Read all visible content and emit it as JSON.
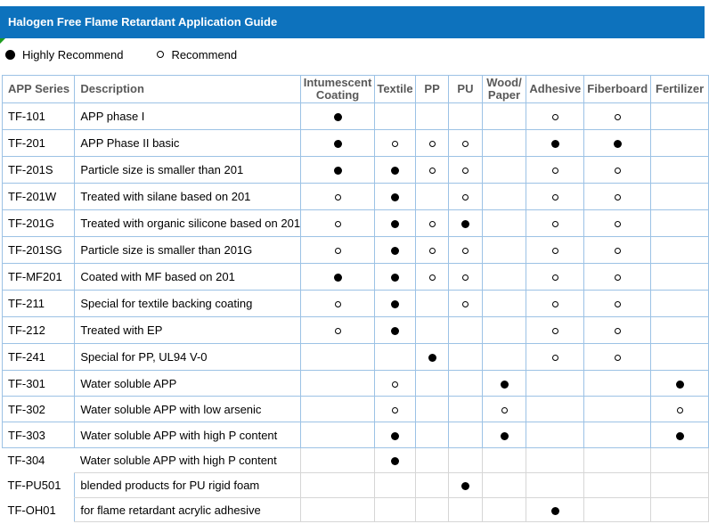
{
  "title": "Halogen Free Flame Retardant Application Guide",
  "legend": {
    "highly_label": "Highly Recommend",
    "recommend_label": "Recommend",
    "highly_marker": "filled-circle",
    "recommend_marker": "open-circle"
  },
  "colors": {
    "title_bar_blue": "#0d72bd",
    "grid_blue": "#9cc2e5",
    "grid_gray": "#d6d6d6",
    "header_text_gray": "#595959",
    "marker_black": "#000000",
    "corner_marker_green": "#1e9c1e"
  },
  "table": {
    "headers": [
      "APP Series",
      "Description",
      "Intumescent\nCoating",
      "Textile",
      "PP",
      "PU",
      "Wood/\nPaper",
      "Adhesive",
      "Fiberboard",
      "Fertilizer"
    ],
    "marker_key": {
      "H": "highly-recommend",
      "R": "recommend",
      "": "none"
    },
    "rows": [
      {
        "series": "TF-101",
        "desc": "APP phase I",
        "cells": [
          "H",
          "",
          "",
          "",
          "",
          "R",
          "R",
          ""
        ]
      },
      {
        "series": "TF-201",
        "desc": "APP Phase II basic",
        "cells": [
          "H",
          "R",
          "R",
          "R",
          "",
          "H",
          "H",
          ""
        ]
      },
      {
        "series": "TF-201S",
        "desc": "Particle size is smaller than 201",
        "cells": [
          "H",
          "H",
          "R",
          "R",
          "",
          "R",
          "R",
          ""
        ]
      },
      {
        "series": "TF-201W",
        "desc": "Treated with silane based on 201",
        "cells": [
          "R",
          "H",
          "",
          "R",
          "",
          "R",
          "R",
          ""
        ]
      },
      {
        "series": "TF-201G",
        "desc": "Treated with organic silicone based on 201",
        "cells": [
          "R",
          "H",
          "R",
          "H",
          "",
          "R",
          "R",
          ""
        ]
      },
      {
        "series": "TF-201SG",
        "desc": "Particle size is smaller than 201G",
        "cells": [
          "R",
          "H",
          "R",
          "R",
          "",
          "R",
          "R",
          ""
        ]
      },
      {
        "series": "TF-MF201",
        "desc": "Coated with MF based on 201",
        "cells": [
          "H",
          "H",
          "R",
          "R",
          "",
          "R",
          "R",
          ""
        ]
      },
      {
        "series": "TF-211",
        "desc": "Special for textile backing coating",
        "cells": [
          "R",
          "H",
          "",
          "R",
          "",
          "R",
          "R",
          ""
        ]
      },
      {
        "series": "TF-212",
        "desc": "Treated with EP",
        "cells": [
          "R",
          "H",
          "",
          "",
          "",
          "R",
          "R",
          ""
        ]
      },
      {
        "series": "TF-241",
        "desc": "Special for PP, UL94 V-0",
        "cells": [
          "",
          "",
          "H",
          "",
          "",
          "R",
          "R",
          ""
        ]
      },
      {
        "series": "TF-301",
        "desc": "Water soluble APP",
        "cells": [
          "",
          "R",
          "",
          "",
          "H",
          "",
          "",
          "H"
        ]
      },
      {
        "series": "TF-302",
        "desc": "Water soluble APP with low arsenic",
        "cells": [
          "",
          "R",
          "",
          "",
          "R",
          "",
          "",
          "R"
        ]
      },
      {
        "series": "TF-303",
        "desc": "Water soluble APP with high P content",
        "cells": [
          "",
          "H",
          "",
          "",
          "H",
          "",
          "",
          "H"
        ]
      },
      {
        "series": "TF-304",
        "desc": "Water soluble APP with high P content",
        "cells": [
          "",
          "H",
          "",
          "",
          "",
          "",
          "",
          ""
        ]
      },
      {
        "series": "TF-PU501",
        "desc": "blended products for PU rigid foam",
        "cells": [
          "",
          "",
          "",
          "H",
          "",
          "",
          "",
          ""
        ]
      },
      {
        "series": "TF-OH01",
        "desc": "for flame retardant acrylic adhesive",
        "cells": [
          "",
          "",
          "",
          "",
          "",
          "H",
          "",
          ""
        ]
      }
    ]
  }
}
